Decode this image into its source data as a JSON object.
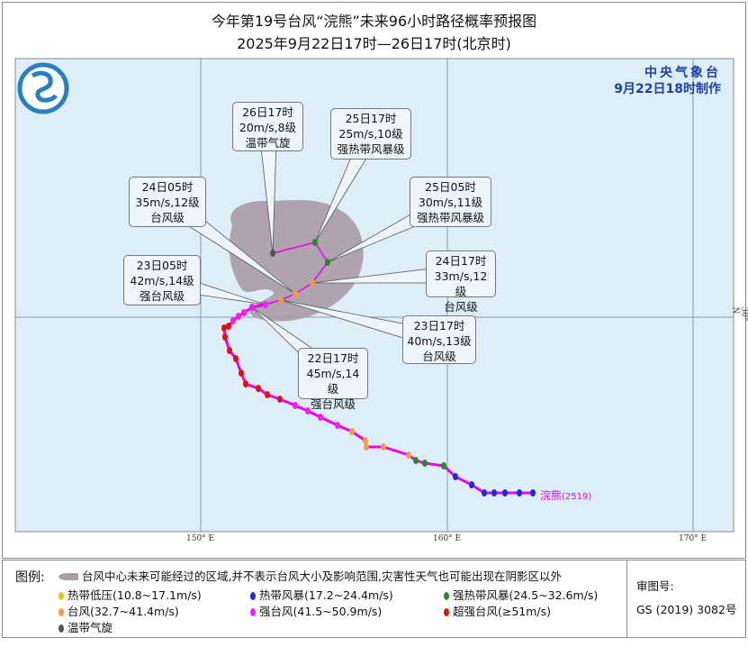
{
  "title": "今年第19号台风“浣熊”未来96小时路径概率预报图",
  "subtitle": "2025年9月22日17时—26日17时(北京时)",
  "issuer": {
    "name": "中央气象台",
    "made": "9月22日18时制作"
  },
  "axes": {
    "lon": [
      "150° E",
      "160° E",
      "170° E"
    ],
    "lat": [
      "30° N"
    ]
  },
  "typhoon_label": "浣熊",
  "typhoon_code": "(2519)",
  "colors": {
    "tropical_depression": "#e8c21a",
    "tropical_storm": "#1a2fc8",
    "severe_tropical_storm": "#2a8a2a",
    "typhoon": "#f59a4a",
    "severe_typhoon": "#f020f0",
    "super_typhoon": "#e01010",
    "extratropical": "#555555",
    "track": "#ee00ee",
    "probability_area": "#a89aa6"
  },
  "forecast_labels": [
    {
      "time": "22日17时",
      "wind": "45m/s,14级",
      "level": "强台风级"
    },
    {
      "time": "23日05时",
      "wind": "42m/s,14级",
      "level": "强台风级"
    },
    {
      "time": "23日17时",
      "wind": "40m/s,13级",
      "level": "台风级"
    },
    {
      "time": "24日05时",
      "wind": "35m/s,12级",
      "level": "台风级"
    },
    {
      "time": "24日17时",
      "wind": "33m/s,12级",
      "level": "台风级"
    },
    {
      "time": "25日05时",
      "wind": "30m/s,11级",
      "level": "强热带风暴级"
    },
    {
      "time": "25日17时",
      "wind": "25m/s,10级",
      "level": "强热带风暴级"
    },
    {
      "time": "26日17时",
      "wind": "20m/s,8级",
      "level": "温带气旋"
    }
  ],
  "legend": {
    "title": "图例:",
    "area": "台风中心未来可能经过的区域,并不表示台风大小及影响范围,灾害性天气也可能出现在阴影区以外",
    "items": [
      {
        "label": "热带低压(10.8~17.1m/s)",
        "color": "#e8c21a"
      },
      {
        "label": "热带风暴(17.2~24.4m/s)",
        "color": "#1a2fc8"
      },
      {
        "label": "强热带风暴(24.5~32.6m/s)",
        "color": "#2a8a2a"
      },
      {
        "label": "台风(32.7~41.4m/s)",
        "color": "#f59a4a"
      },
      {
        "label": "强台风(41.5~50.9m/s)",
        "color": "#f020f0"
      },
      {
        "label": "超强台风(≥51m/s)",
        "color": "#e01010"
      },
      {
        "label": "温带气旋",
        "color": "#555555"
      }
    ],
    "review_label": "审图号:",
    "review_no": "GS (2019) 3082号"
  }
}
